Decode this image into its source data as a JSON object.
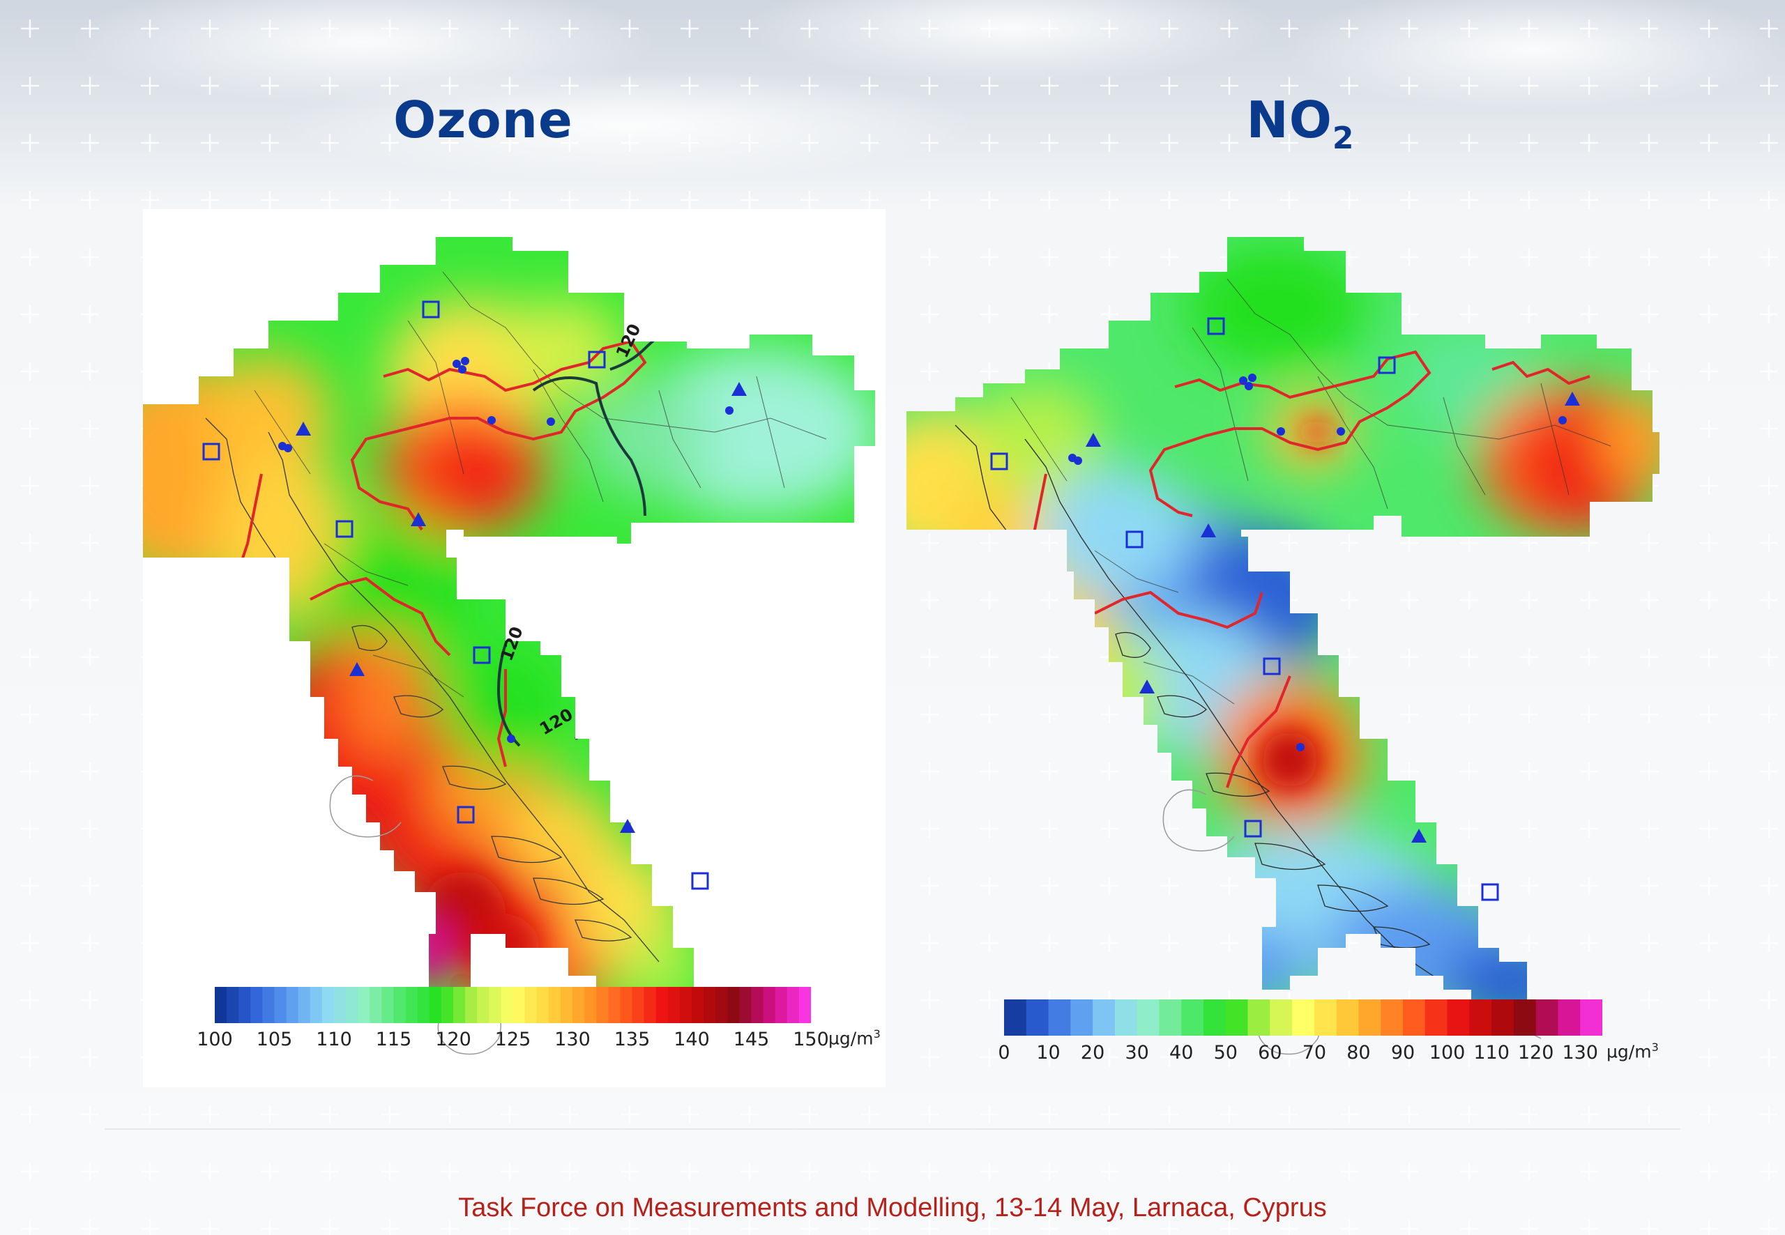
{
  "titles": {
    "ozone": "Ozone",
    "no2_main": "NO",
    "no2_sub": "2"
  },
  "footer": "Task Force on Measurements and Modelling, 13-14 May, Larnaca, Cyprus",
  "ozone_colorbar": {
    "ticks": [
      "100",
      "105",
      "110",
      "115",
      "120",
      "125",
      "130",
      "135",
      "140",
      "145",
      "150"
    ],
    "unit_main": "µg/m",
    "unit_sup": "3",
    "min": 100,
    "max": 150
  },
  "no2_colorbar": {
    "ticks": [
      "0",
      "10",
      "20",
      "30",
      "40",
      "50",
      "60",
      "70",
      "80",
      "90",
      "100",
      "110",
      "120",
      "130"
    ],
    "unit_main": "µg/m",
    "unit_sup": "3",
    "min": 0,
    "max": 135
  },
  "contour_labels": {
    "ozone_1": "120",
    "ozone_2": "120",
    "ozone_3": "120"
  },
  "colors": {
    "title": "#0a3a8c",
    "footer": "#b8201a",
    "boundary_red": "#e0262a",
    "station_blue": "#1a2fd6",
    "contour": "#1b3a3a",
    "scale": [
      "#0b2f8c",
      "#2c5fd6",
      "#5b9cf0",
      "#8fd9f5",
      "#8ff0c0",
      "#4fe86a",
      "#22e01e",
      "#b8f04a",
      "#ffff66",
      "#ffd23c",
      "#ff9a28",
      "#ff5a1e",
      "#ef1414",
      "#c00a0a",
      "#8a0a14",
      "#d4108c",
      "#ff3cf0"
    ]
  },
  "icons": {
    "station_square": "square-station-icon",
    "station_triangle": "triangle-station-icon",
    "station_dot": "dot-station-icon"
  }
}
